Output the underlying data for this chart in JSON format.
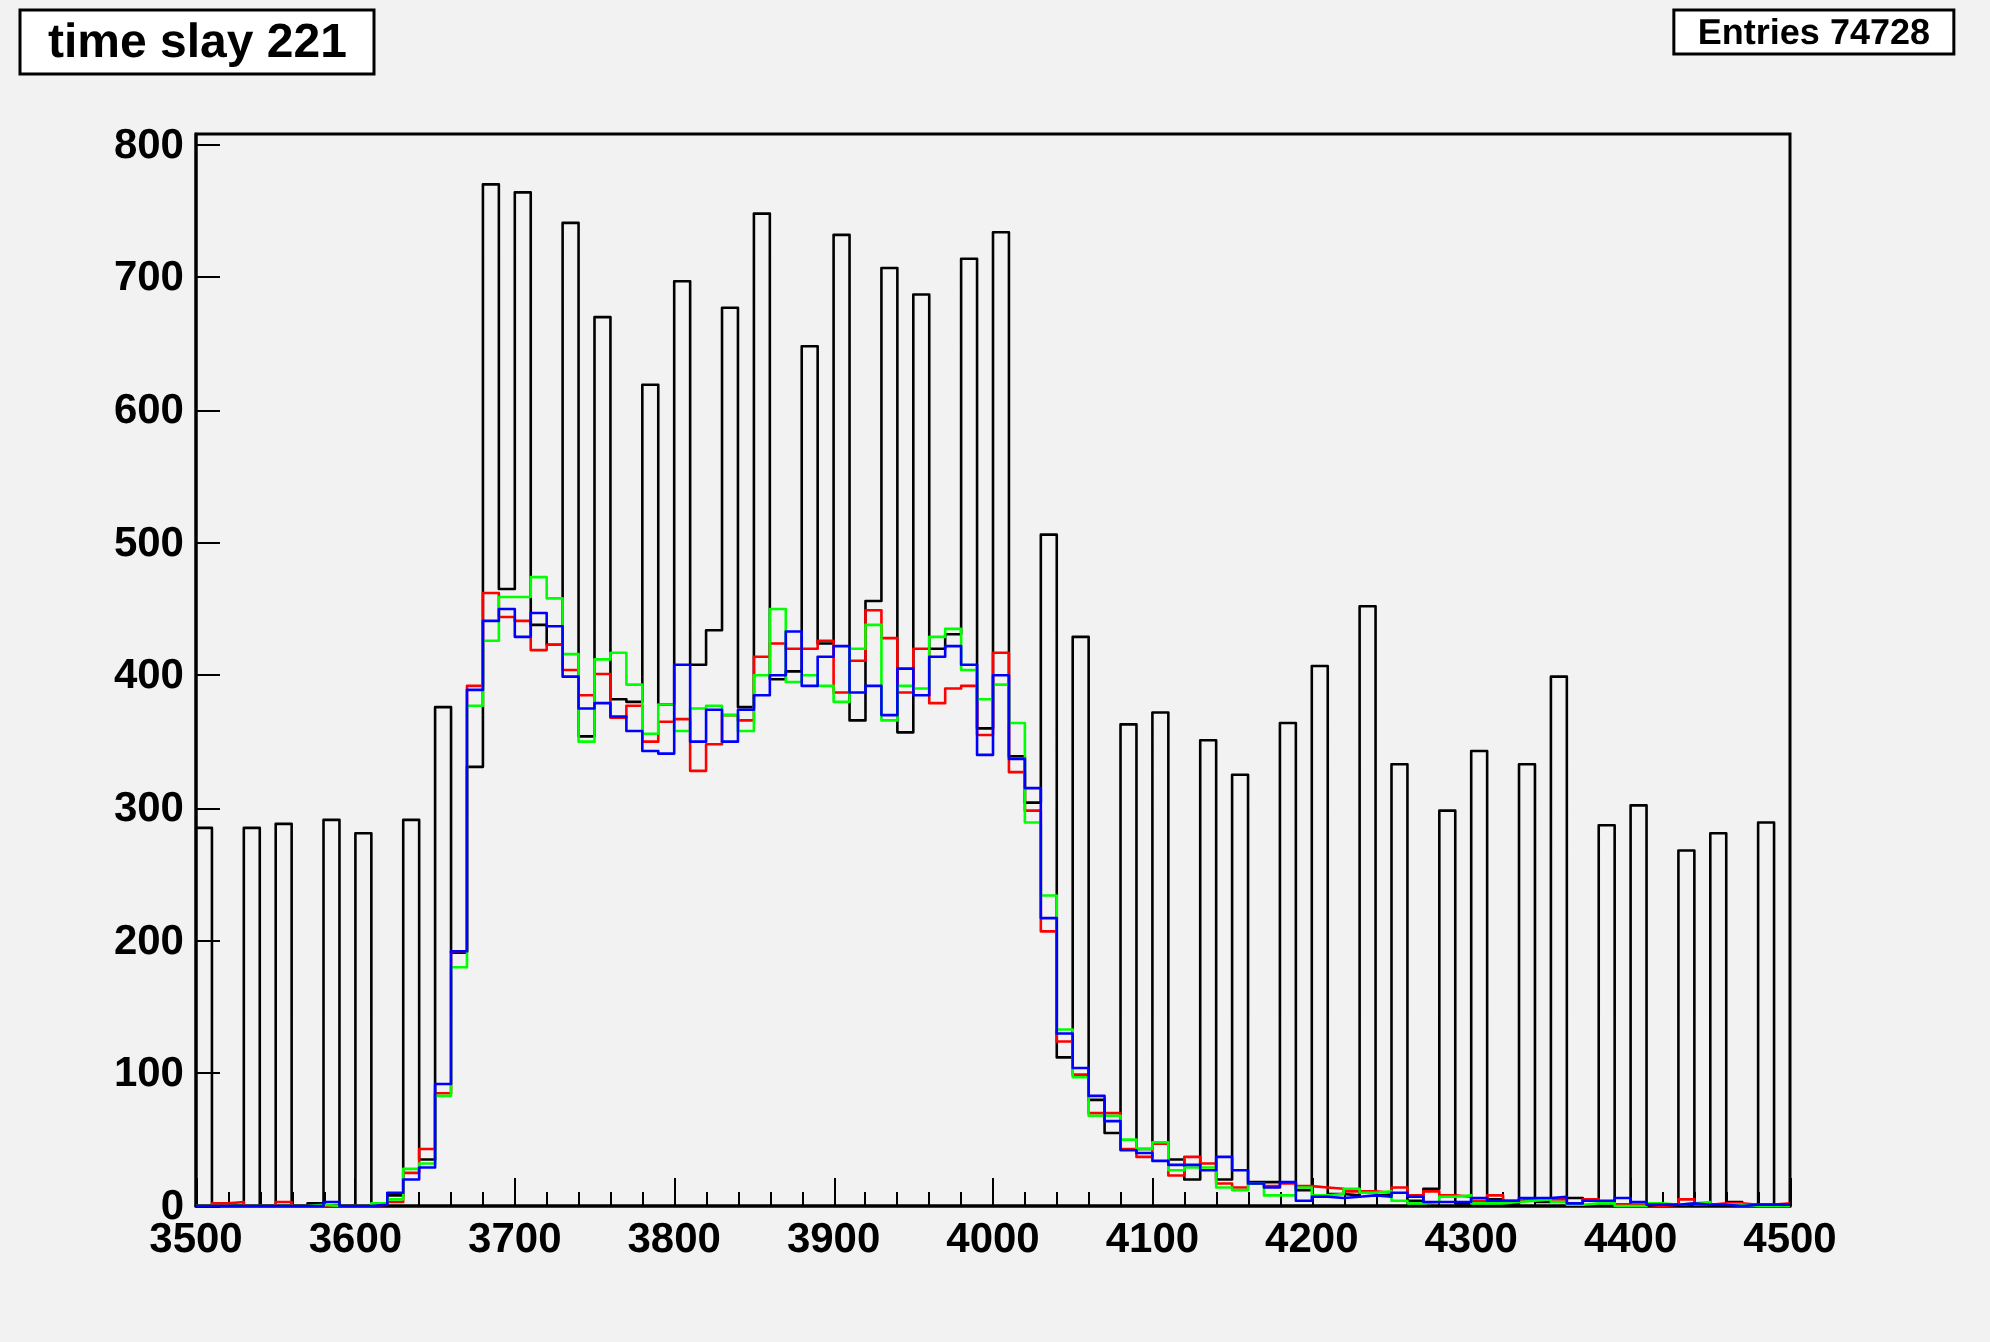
{
  "chart_data": {
    "type": "histogram",
    "title": "time slay 221",
    "annotations": [
      "Entries 74728"
    ],
    "bins": [
      3500,
      3510,
      3520,
      3530,
      3540,
      3550,
      3560,
      3570,
      3580,
      3590,
      3600,
      3610,
      3620,
      3630,
      3640,
      3650,
      3660,
      3670,
      3680,
      3690,
      3700,
      3710,
      3720,
      3730,
      3740,
      3750,
      3760,
      3770,
      3780,
      3790,
      3800,
      3810,
      3820,
      3830,
      3840,
      3850,
      3860,
      3870,
      3880,
      3890,
      3900,
      3910,
      3920,
      3930,
      3940,
      3950,
      3960,
      3970,
      3980,
      3990,
      4000,
      4010,
      4020,
      4030,
      4040,
      4050,
      4060,
      4070,
      4080,
      4090,
      4100,
      4110,
      4120,
      4130,
      4140,
      4150,
      4160,
      4170,
      4180,
      4190,
      4200,
      4210,
      4220,
      4230,
      4240,
      4250,
      4260,
      4270,
      4280,
      4290,
      4300,
      4310,
      4320,
      4330,
      4340,
      4350,
      4360,
      4370,
      4380,
      4390,
      4400,
      4410,
      4420,
      4430,
      4440,
      4450,
      4460,
      4470,
      4480,
      4490,
      4500
    ],
    "series": [
      {
        "color": "#000000",
        "values": [
          285,
          0,
          0,
          285,
          0,
          288,
          0,
          2,
          291,
          0,
          281,
          0,
          8,
          291,
          35,
          376,
          191,
          331,
          770,
          465,
          764,
          438,
          423,
          741,
          354,
          670,
          382,
          380,
          619,
          378,
          697,
          408,
          434,
          677,
          376,
          748,
          397,
          403,
          648,
          424,
          732,
          366,
          456,
          707,
          357,
          687,
          420,
          431,
          714,
          360,
          734,
          339,
          304,
          506,
          112,
          429,
          80,
          55,
          363,
          43,
          372,
          35,
          20,
          351,
          20,
          325,
          18,
          18,
          364,
          12,
          407,
          9,
          8,
          452,
          8,
          333,
          4,
          13,
          298,
          2,
          343,
          5,
          2,
          333,
          3,
          399,
          6,
          4,
          287,
          1,
          302,
          1,
          1,
          268,
          1,
          281,
          3,
          1,
          289,
          0
        ]
      },
      {
        "color": "#ff0000",
        "values": [
          0,
          2,
          3,
          0,
          0,
          3,
          0,
          0,
          0,
          0,
          0,
          1,
          3,
          25,
          43,
          85,
          192,
          392,
          462,
          444,
          441,
          419,
          423,
          404,
          385,
          401,
          368,
          377,
          350,
          365,
          367,
          328,
          348,
          370,
          366,
          414,
          424,
          420,
          420,
          426,
          387,
          411,
          449,
          428,
          387,
          420,
          379,
          390,
          392,
          355,
          417,
          327,
          298,
          207,
          124,
          99,
          70,
          70,
          43,
          37,
          47,
          23,
          37,
          32,
          17,
          14,
          17,
          15,
          17,
          15,
          14,
          13,
          11,
          11,
          10,
          14,
          8,
          11,
          8,
          7,
          4,
          8,
          4,
          5,
          5,
          5,
          2,
          5,
          3,
          1,
          1,
          0,
          1,
          5,
          1,
          2,
          2,
          1,
          1,
          2
        ]
      },
      {
        "color": "#00ff00",
        "values": [
          0,
          0,
          0,
          0,
          0,
          0,
          0,
          1,
          0,
          0,
          0,
          2,
          5,
          28,
          32,
          83,
          180,
          377,
          426,
          459,
          459,
          474,
          458,
          416,
          350,
          412,
          417,
          393,
          356,
          378,
          358,
          375,
          377,
          370,
          358,
          400,
          450,
          395,
          400,
          392,
          380,
          420,
          438,
          366,
          392,
          390,
          429,
          435,
          404,
          382,
          393,
          364,
          289,
          234,
          133,
          97,
          68,
          68,
          50,
          43,
          48,
          27,
          29,
          29,
          14,
          12,
          17,
          8,
          8,
          14,
          8,
          9,
          13,
          10,
          11,
          4,
          2,
          3,
          7,
          8,
          2,
          2,
          3,
          4,
          5,
          3,
          1,
          2,
          2,
          0,
          0,
          2,
          1,
          2,
          3,
          1,
          1,
          0,
          0,
          0
        ]
      },
      {
        "color": "#0000ff",
        "values": [
          0,
          0,
          0,
          0,
          0,
          0,
          0,
          0,
          3,
          0,
          0,
          1,
          10,
          20,
          29,
          92,
          192,
          389,
          441,
          450,
          429,
          447,
          437,
          399,
          375,
          379,
          369,
          358,
          343,
          341,
          408,
          350,
          374,
          350,
          374,
          385,
          400,
          433,
          392,
          414,
          422,
          387,
          392,
          370,
          405,
          385,
          414,
          422,
          408,
          340,
          400,
          337,
          315,
          217,
          130,
          104,
          83,
          64,
          42,
          40,
          34,
          31,
          31,
          27,
          37,
          27,
          17,
          14,
          18,
          4,
          7,
          6,
          7,
          8,
          7,
          10,
          7,
          3,
          3,
          3,
          6,
          4,
          4,
          6,
          6,
          7,
          2,
          4,
          4,
          6,
          3,
          1,
          1,
          2,
          1,
          1,
          0,
          1,
          1,
          1
        ]
      }
    ],
    "xlim": [
      3500,
      4500
    ],
    "ylim": [
      0,
      808
    ],
    "xticks": [
      3500,
      3600,
      3700,
      3800,
      3900,
      4000,
      4100,
      4200,
      4300,
      4400,
      4500
    ],
    "yticks": [
      0,
      100,
      200,
      300,
      400,
      500,
      600,
      700,
      800
    ]
  }
}
